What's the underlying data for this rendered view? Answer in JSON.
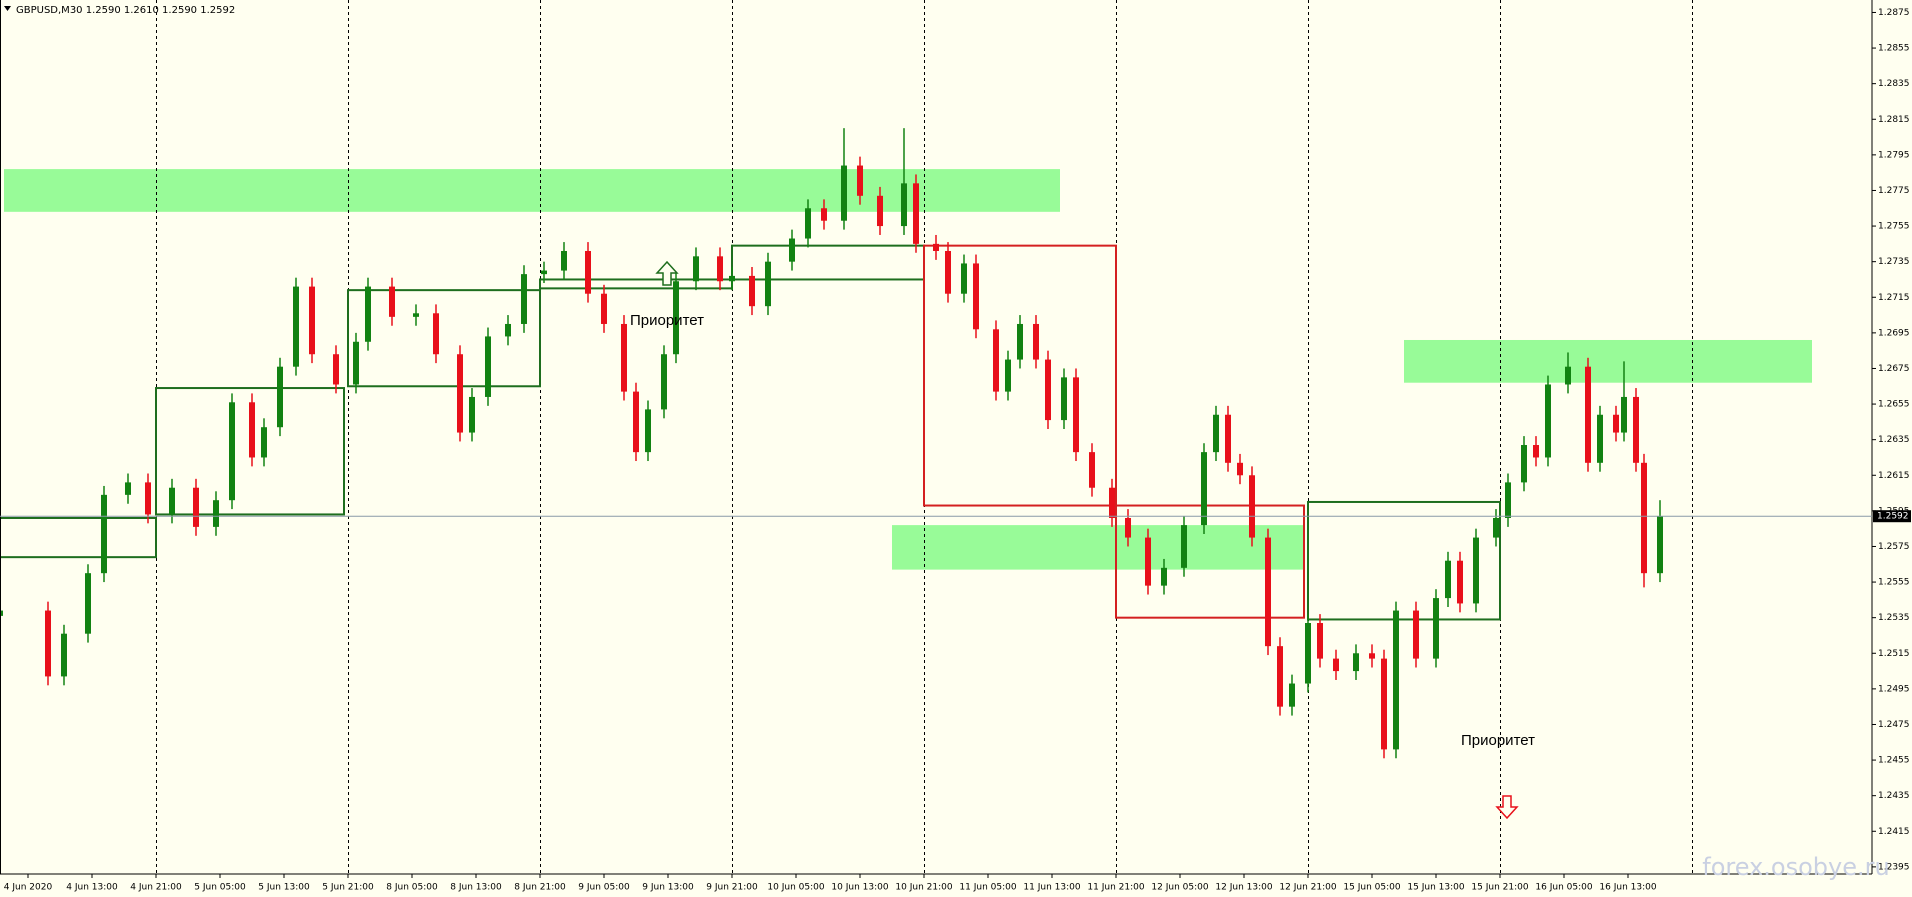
{
  "chart_data": {
    "type": "candlestick",
    "title": "GBPUSD,M30  1.2590 1.2610 1.2590 1.2592",
    "watermark": "forex.osobye.ru",
    "annotations": [
      "Приоритет",
      "Приоритет"
    ],
    "up_color": "#128212",
    "down_color": "#e8101a",
    "xlim": [
      -7,
      461
    ],
    "ylim": [
      1.2391,
      1.2882
    ],
    "yticks": [
      1.2395,
      1.2415,
      1.2435,
      1.2455,
      1.2475,
      1.2495,
      1.2515,
      1.2535,
      1.2555,
      1.2575,
      1.2595,
      1.2615,
      1.2635,
      1.2655,
      1.2675,
      1.2695,
      1.2715,
      1.2735,
      1.2755,
      1.2775,
      1.2795,
      1.2815,
      1.2835,
      1.2855,
      1.2875
    ],
    "xticks": [
      {
        "value": 0,
        "label": "4 Jun 2020"
      },
      {
        "value": 16,
        "label": "4 Jun 13:00"
      },
      {
        "value": 32,
        "label": "4 Jun 21:00"
      },
      {
        "value": 48,
        "label": "5 Jun 05:00"
      },
      {
        "value": 64,
        "label": "5 Jun 13:00"
      },
      {
        "value": 80,
        "label": "5 Jun 21:00"
      },
      {
        "value": 96,
        "label": "8 Jun 05:00"
      },
      {
        "value": 112,
        "label": "8 Jun 13:00"
      },
      {
        "value": 128,
        "label": "8 Jun 21:00"
      },
      {
        "value": 144,
        "label": "9 Jun 05:00"
      },
      {
        "value": 160,
        "label": "9 Jun 13:00"
      },
      {
        "value": 176,
        "label": "9 Jun 21:00"
      },
      {
        "value": 192,
        "label": "10 Jun 05:00"
      },
      {
        "value": 208,
        "label": "10 Jun 13:00"
      },
      {
        "value": 224,
        "label": "10 Jun 21:00"
      },
      {
        "value": 240,
        "label": "11 Jun 05:00"
      },
      {
        "value": 256,
        "label": "11 Jun 13:00"
      },
      {
        "value": 272,
        "label": "11 Jun 21:00"
      },
      {
        "value": 288,
        "label": "12 Jun 05:00"
      },
      {
        "value": 304,
        "label": "12 Jun 13:00"
      },
      {
        "value": 320,
        "label": "12 Jun 21:00"
      },
      {
        "value": 336,
        "label": "15 Jun 05:00"
      },
      {
        "value": 352,
        "label": "15 Jun 13:00"
      },
      {
        "value": 368,
        "label": "15 Jun 21:00"
      },
      {
        "value": 384,
        "label": "16 Jun 05:00"
      },
      {
        "value": 400,
        "label": "16 Jun 13:00"
      }
    ],
    "xgrid": [
      32,
      80,
      128,
      176,
      224,
      272,
      320,
      368,
      416
    ],
    "last_price": 1.2592,
    "zones": [
      {
        "x": [
          -6,
          258
        ],
        "y": [
          1.2763,
          1.2787
        ],
        "color": "#98fb98"
      },
      {
        "x": [
          216,
          319
        ],
        "y": [
          1.2562,
          1.2587
        ],
        "color": "#98fb98"
      },
      {
        "x": [
          344,
          446
        ],
        "y": [
          1.2667,
          1.2691
        ],
        "color": "#98fb98"
      }
    ],
    "boxes": [
      {
        "x": [
          -7,
          32
        ],
        "y": [
          1.2569,
          1.2591
        ],
        "color": "#1e6e1e"
      },
      {
        "x": [
          32,
          79
        ],
        "y": [
          1.2593,
          1.2664
        ],
        "color": "#1e6e1e"
      },
      {
        "x": [
          80,
          128
        ],
        "y": [
          1.2665,
          1.2719
        ],
        "color": "#1e6e1e"
      },
      {
        "x": [
          128,
          176
        ],
        "y": [
          1.272,
          1.2725
        ],
        "color": "#1e6e1e"
      },
      {
        "x": [
          176,
          224
        ],
        "y": [
          1.2725,
          1.2744
        ],
        "color": "#1e6e1e"
      },
      {
        "x": [
          224,
          272
        ],
        "y": [
          1.2598,
          1.2744
        ],
        "color": "#d42020"
      },
      {
        "x": [
          272,
          319
        ],
        "y": [
          1.2535,
          1.2598
        ],
        "color": "#d42020"
      },
      {
        "x": [
          320,
          368
        ],
        "y": [
          1.2534,
          1.26
        ],
        "color": "#1e6e1e"
      }
    ],
    "candles": {
      "x": [
        -7,
        5,
        9,
        15,
        19,
        25,
        30,
        36,
        42,
        47,
        51,
        56,
        59,
        63,
        67,
        71,
        77,
        82,
        85,
        91,
        97,
        102,
        108,
        111,
        115,
        120,
        124,
        129,
        134,
        140,
        144,
        149,
        152,
        155,
        159,
        162,
        167,
        173,
        176,
        181,
        185,
        191,
        195,
        199,
        204,
        208,
        213,
        219,
        222,
        227,
        230,
        234,
        237,
        242,
        245,
        248,
        252,
        255,
        259,
        262,
        266,
        271,
        275,
        280,
        284,
        289,
        294,
        297,
        300,
        303,
        306,
        310,
        313,
        316,
        320,
        323,
        327,
        332,
        336,
        339,
        342,
        347,
        352,
        355,
        358,
        362,
        367,
        370,
        374,
        377,
        380,
        385,
        390,
        393,
        397,
        399,
        402,
        404,
        408
      ],
      "open": [
        1.2536,
        1.2539,
        1.2502,
        1.2526,
        1.256,
        1.2604,
        1.2611,
        1.2593,
        1.2608,
        1.2586,
        1.2601,
        1.2656,
        1.2625,
        1.2642,
        1.2676,
        1.2721,
        1.2683,
        1.2666,
        1.269,
        1.2721,
        1.2704,
        1.2706,
        1.2683,
        1.2639,
        1.2659,
        1.2693,
        1.27,
        1.2728,
        1.273,
        1.2741,
        1.2717,
        1.27,
        1.2662,
        1.2628,
        1.2652,
        1.2683,
        1.2724,
        1.2738,
        1.2724,
        1.2727,
        1.271,
        1.2735,
        1.2748,
        1.2765,
        1.2758,
        1.2789,
        1.2772,
        1.2755,
        1.2779,
        1.2745,
        1.2741,
        1.2717,
        1.2734,
        1.2697,
        1.2662,
        1.268,
        1.27,
        1.268,
        1.2646,
        1.267,
        1.2628,
        1.2608,
        1.2591,
        1.258,
        1.2553,
        1.2563,
        1.2587,
        1.2628,
        1.2649,
        1.2622,
        1.2615,
        1.258,
        1.2519,
        1.2485,
        1.2498,
        1.2532,
        1.2512,
        1.2505,
        1.2515,
        1.2512,
        1.2461,
        1.2539,
        1.2512,
        1.2546,
        1.2567,
        1.2543,
        1.258,
        1.2591,
        1.2611,
        1.2632,
        1.2625,
        1.2666,
        1.2676,
        1.2622,
        1.2649,
        1.2639,
        1.2659,
        1.2622,
        1.256
      ],
      "high": [
        1.2544,
        1.2544,
        1.2531,
        1.2565,
        1.2609,
        1.2616,
        1.2616,
        1.2613,
        1.2613,
        1.2606,
        1.2661,
        1.2661,
        1.2647,
        1.2681,
        1.2726,
        1.2726,
        1.2688,
        1.2695,
        1.2726,
        1.2726,
        1.2711,
        1.2711,
        1.2688,
        1.2664,
        1.2698,
        1.2705,
        1.2733,
        1.2735,
        1.2746,
        1.2746,
        1.2722,
        1.2705,
        1.2667,
        1.2657,
        1.2688,
        1.2729,
        1.2743,
        1.2743,
        1.2732,
        1.2732,
        1.274,
        1.2753,
        1.277,
        1.277,
        1.281,
        1.2794,
        1.2777,
        1.281,
        1.2784,
        1.275,
        1.2746,
        1.2739,
        1.2739,
        1.2702,
        1.2685,
        1.2705,
        1.2705,
        1.2685,
        1.2675,
        1.2675,
        1.2633,
        1.2613,
        1.2596,
        1.2585,
        1.2568,
        1.2592,
        1.2633,
        1.2654,
        1.2654,
        1.2627,
        1.262,
        1.2585,
        1.2524,
        1.2503,
        1.2537,
        1.2537,
        1.2517,
        1.252,
        1.252,
        1.2517,
        1.2544,
        1.2544,
        1.2551,
        1.2572,
        1.2572,
        1.2585,
        1.2596,
        1.2616,
        1.2637,
        1.2637,
        1.2671,
        1.2684,
        1.2681,
        1.2654,
        1.2654,
        1.2679,
        1.2664,
        1.2627,
        1.2601
      ],
      "low": [
        1.2531,
        1.2497,
        1.2497,
        1.2521,
        1.2555,
        1.2599,
        1.2588,
        1.2588,
        1.2581,
        1.2581,
        1.2596,
        1.262,
        1.262,
        1.2637,
        1.2671,
        1.2678,
        1.2661,
        1.2661,
        1.2685,
        1.2699,
        1.2699,
        1.2678,
        1.2634,
        1.2634,
        1.2654,
        1.2688,
        1.2695,
        1.2723,
        1.2725,
        1.2712,
        1.2695,
        1.2657,
        1.2623,
        1.2623,
        1.2647,
        1.2678,
        1.2719,
        1.2719,
        1.2719,
        1.2705,
        1.2705,
        1.273,
        1.2743,
        1.2753,
        1.2753,
        1.2767,
        1.275,
        1.275,
        1.274,
        1.2736,
        1.2712,
        1.2712,
        1.2692,
        1.2657,
        1.2657,
        1.2675,
        1.2675,
        1.2641,
        1.2641,
        1.2623,
        1.2603,
        1.2586,
        1.2575,
        1.2548,
        1.2548,
        1.2558,
        1.2582,
        1.2623,
        1.2617,
        1.261,
        1.2575,
        1.2514,
        1.248,
        1.248,
        1.2493,
        1.2507,
        1.25,
        1.25,
        1.2507,
        1.2456,
        1.2456,
        1.2507,
        1.2507,
        1.2541,
        1.2538,
        1.2538,
        1.2575,
        1.2586,
        1.2606,
        1.262,
        1.262,
        1.2661,
        1.2617,
        1.2617,
        1.2634,
        1.2634,
        1.2617,
        1.2552,
        1.2555
      ],
      "close": [
        1.2539,
        1.2502,
        1.2526,
        1.256,
        1.2604,
        1.2611,
        1.2593,
        1.2608,
        1.2586,
        1.2601,
        1.2656,
        1.2625,
        1.2642,
        1.2676,
        1.2721,
        1.2683,
        1.2666,
        1.269,
        1.2721,
        1.2704,
        1.2706,
        1.2683,
        1.2639,
        1.2659,
        1.2693,
        1.27,
        1.2728,
        1.273,
        1.2741,
        1.2717,
        1.27,
        1.2662,
        1.2628,
        1.2652,
        1.2683,
        1.2724,
        1.2738,
        1.2724,
        1.2727,
        1.271,
        1.2735,
        1.2748,
        1.2765,
        1.2758,
        1.2789,
        1.2772,
        1.2755,
        1.2779,
        1.2745,
        1.2741,
        1.2717,
        1.2734,
        1.2697,
        1.2662,
        1.268,
        1.27,
        1.268,
        1.2646,
        1.267,
        1.2628,
        1.2608,
        1.2591,
        1.258,
        1.2553,
        1.2563,
        1.2587,
        1.2628,
        1.2649,
        1.2622,
        1.2615,
        1.258,
        1.2519,
        1.2485,
        1.2498,
        1.2532,
        1.2512,
        1.2505,
        1.2515,
        1.2512,
        1.2461,
        1.2539,
        1.2512,
        1.2546,
        1.2567,
        1.2543,
        1.258,
        1.2591,
        1.2611,
        1.2632,
        1.2625,
        1.2666,
        1.2676,
        1.2622,
        1.2649,
        1.2639,
        1.2659,
        1.2622,
        1.256,
        1.2592
      ]
    }
  }
}
